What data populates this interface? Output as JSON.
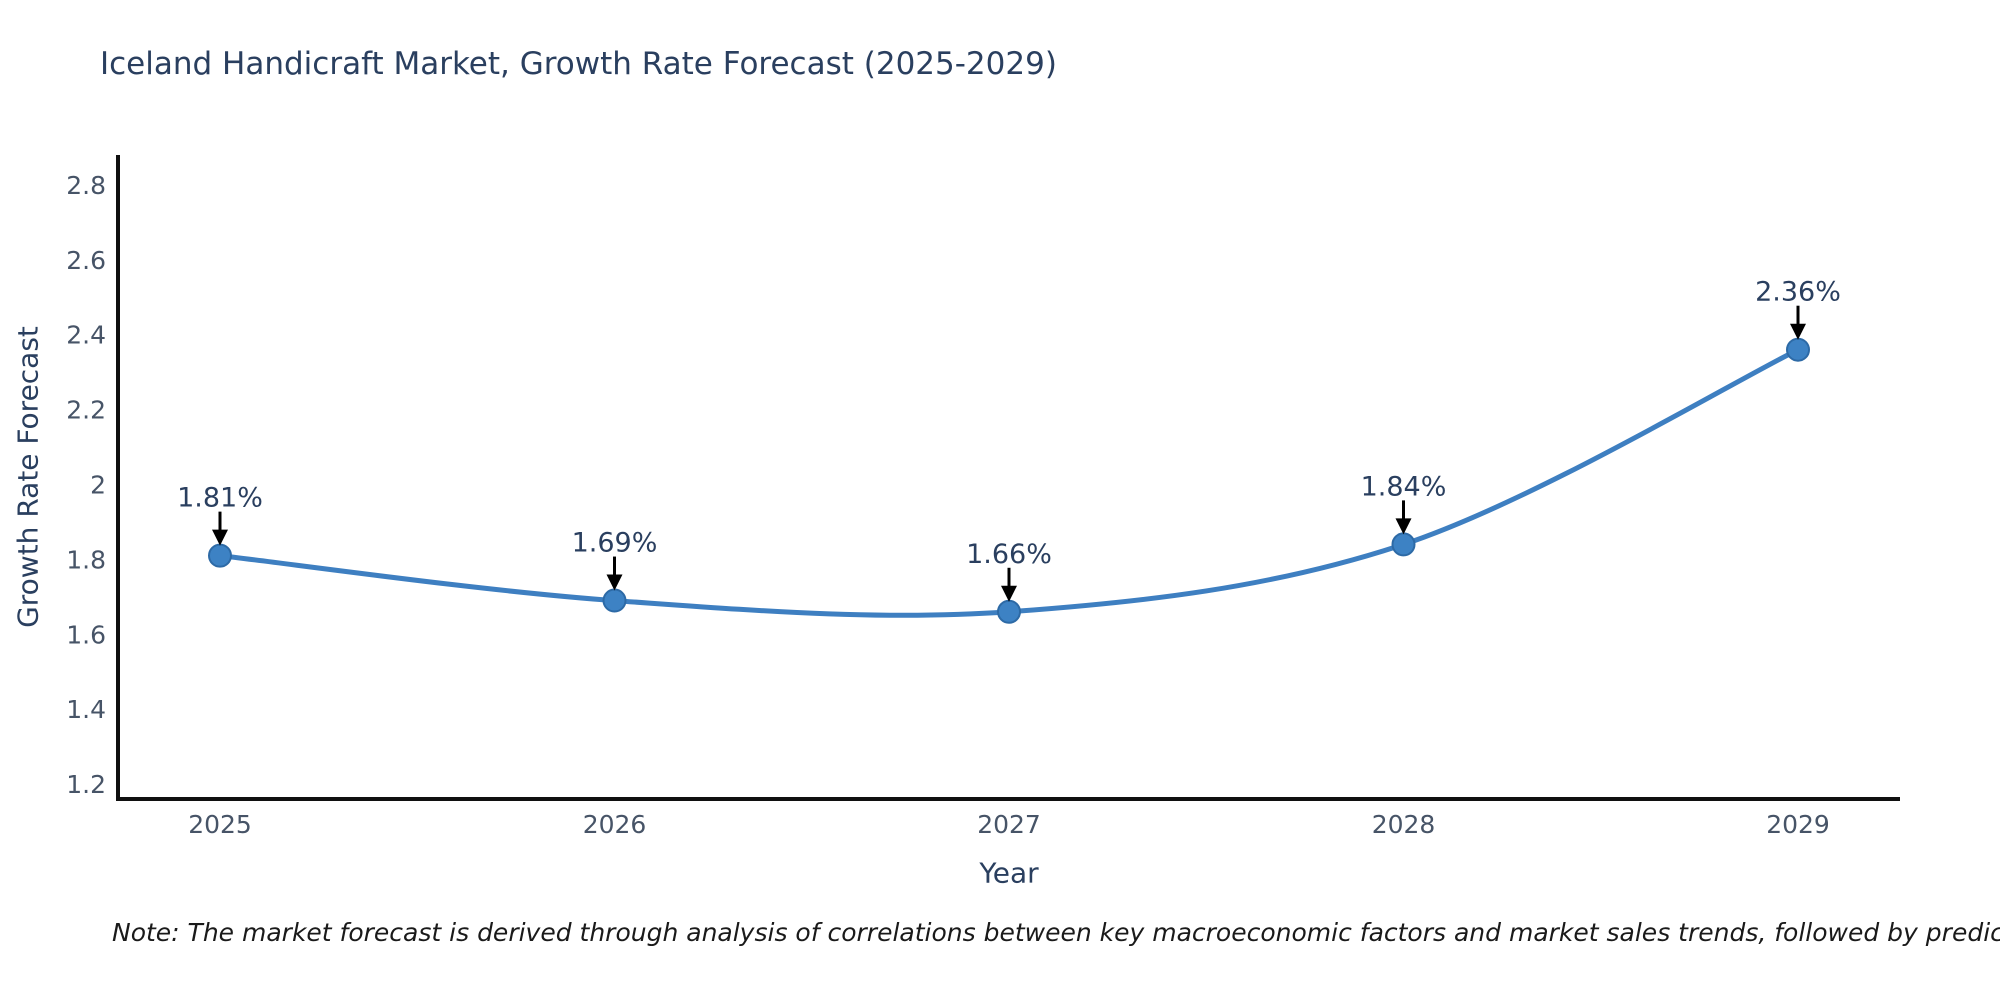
{
  "chart_data": {
    "type": "line",
    "title": "Iceland Handicraft Market, Growth Rate Forecast (2025-2029)",
    "xlabel": "Year",
    "ylabel": "Growth Rate Forecast",
    "categories": [
      "2025",
      "2026",
      "2027",
      "2028",
      "2029"
    ],
    "values": [
      1.81,
      1.69,
      1.66,
      1.84,
      2.36
    ],
    "data_labels": [
      "1.81%",
      "1.69%",
      "1.66%",
      "1.84%",
      "2.36%"
    ],
    "yticks": [
      1.2,
      1.4,
      1.6,
      1.8,
      2,
      2.2,
      2.4,
      2.6,
      2.8
    ],
    "ytick_labels": [
      "1.2",
      "1.4",
      "1.6",
      "1.8",
      "2",
      "2.2",
      "2.4",
      "2.6",
      "2.8"
    ],
    "ylim": [
      1.16,
      2.88
    ],
    "grid": false,
    "legend": false,
    "smooth_spline": true,
    "colors": {
      "line": "#3e7fc1",
      "marker_fill": "#3d82c4",
      "marker_edge": "#2d6aa6",
      "annotation_arrow": "#000000",
      "annotation_text": "#2a3f5f",
      "title_text": "#2a3f5f",
      "tick_text": "#475467",
      "axis_line": "#101010"
    }
  },
  "note": {
    "text": "Note: The market forecast is derived through analysis of correlations between key macroeconomic factors and market sales trends, followed by predictive modeling to project future sales"
  }
}
